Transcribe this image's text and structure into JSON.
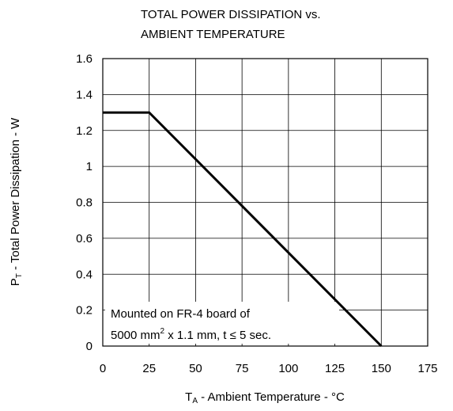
{
  "chart_data": {
    "type": "line",
    "title": [
      "TOTAL POWER DISSIPATION vs.",
      "AMBIENT TEMPERATURE"
    ],
    "y_label": {
      "symbol": "P",
      "sub": "T",
      "text": " - Total Power Dissipation - W"
    },
    "x_label": {
      "symbol": "T",
      "sub": "A",
      "text": " - Ambient Temperature - °C"
    },
    "annotation": {
      "line1": "Mounted on FR-4 board of",
      "line2_a": "5000 mm",
      "line2_sup": "2",
      "line2_b": " x 1.1 mm, t ≤ 5 sec."
    },
    "x": [
      0,
      25,
      150
    ],
    "values": [
      1.3,
      1.3,
      0
    ],
    "color": "#000000",
    "xlim": [
      0,
      175
    ],
    "xticks": [
      0,
      25,
      50,
      75,
      100,
      125,
      150,
      175
    ],
    "ylim": [
      0,
      1.6
    ],
    "yticks": [
      0,
      0.2,
      0.4,
      0.6,
      0.8,
      1,
      1.2,
      1.4,
      1.6
    ],
    "grid": true
  }
}
